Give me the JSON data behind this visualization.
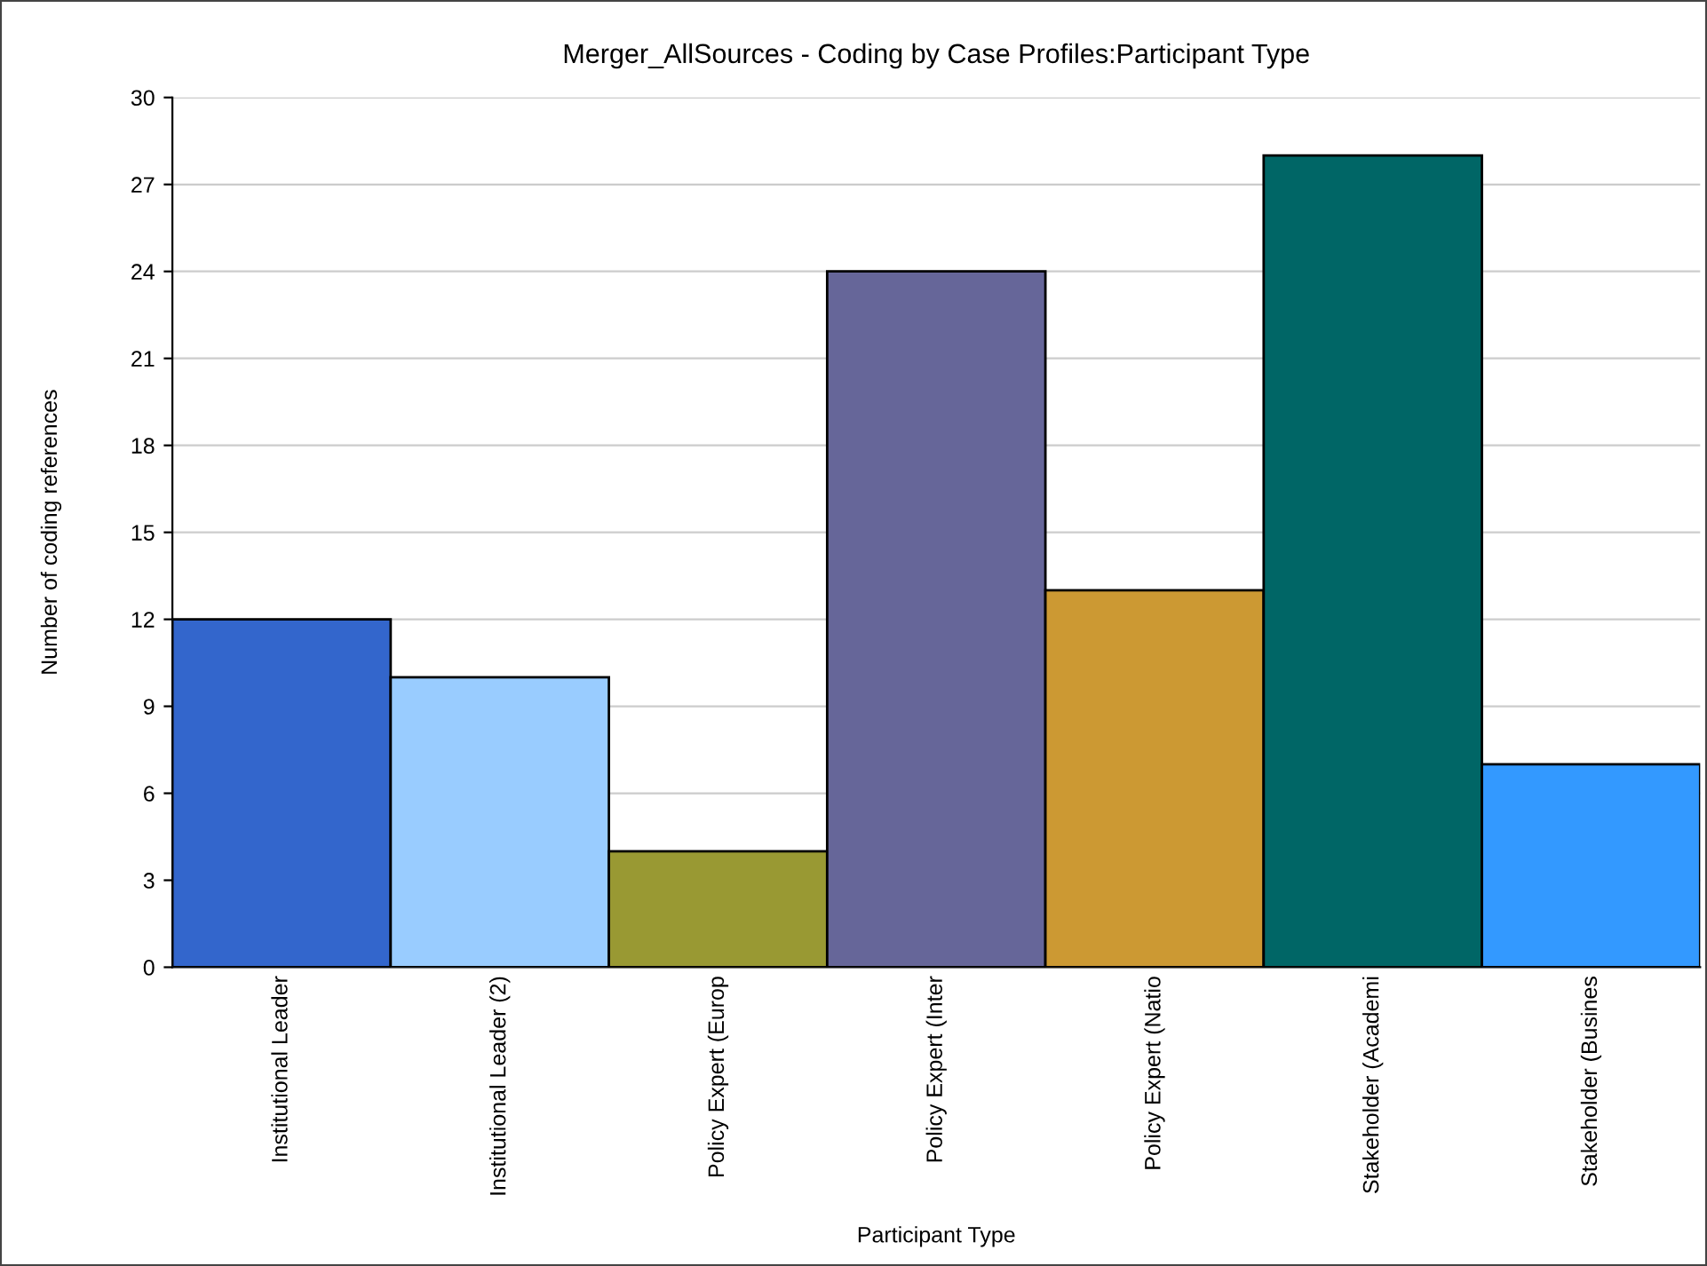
{
  "chart_data": {
    "type": "bar",
    "title": "Merger_AllSources - Coding by Case Profiles:Participant Type",
    "xlabel": "Participant Type",
    "ylabel": "Number of coding references",
    "categories": [
      "Institutional Leader",
      "Institutional Leader (2)",
      "Policy Expert (Europ",
      "Policy Expert (Inter",
      "Policy Expert (Natio",
      "Stakeholder (Academi",
      "Stakeholder (Busines"
    ],
    "values": [
      12,
      10,
      4,
      24,
      13,
      28,
      7
    ],
    "colors": [
      "#3366cc",
      "#99ccff",
      "#999933",
      "#666699",
      "#cc9933",
      "#006666",
      "#3399ff"
    ],
    "ylim": [
      0,
      30
    ],
    "yticks": [
      0,
      3,
      6,
      9,
      12,
      15,
      18,
      21,
      24,
      27,
      30
    ],
    "grid": "y"
  }
}
